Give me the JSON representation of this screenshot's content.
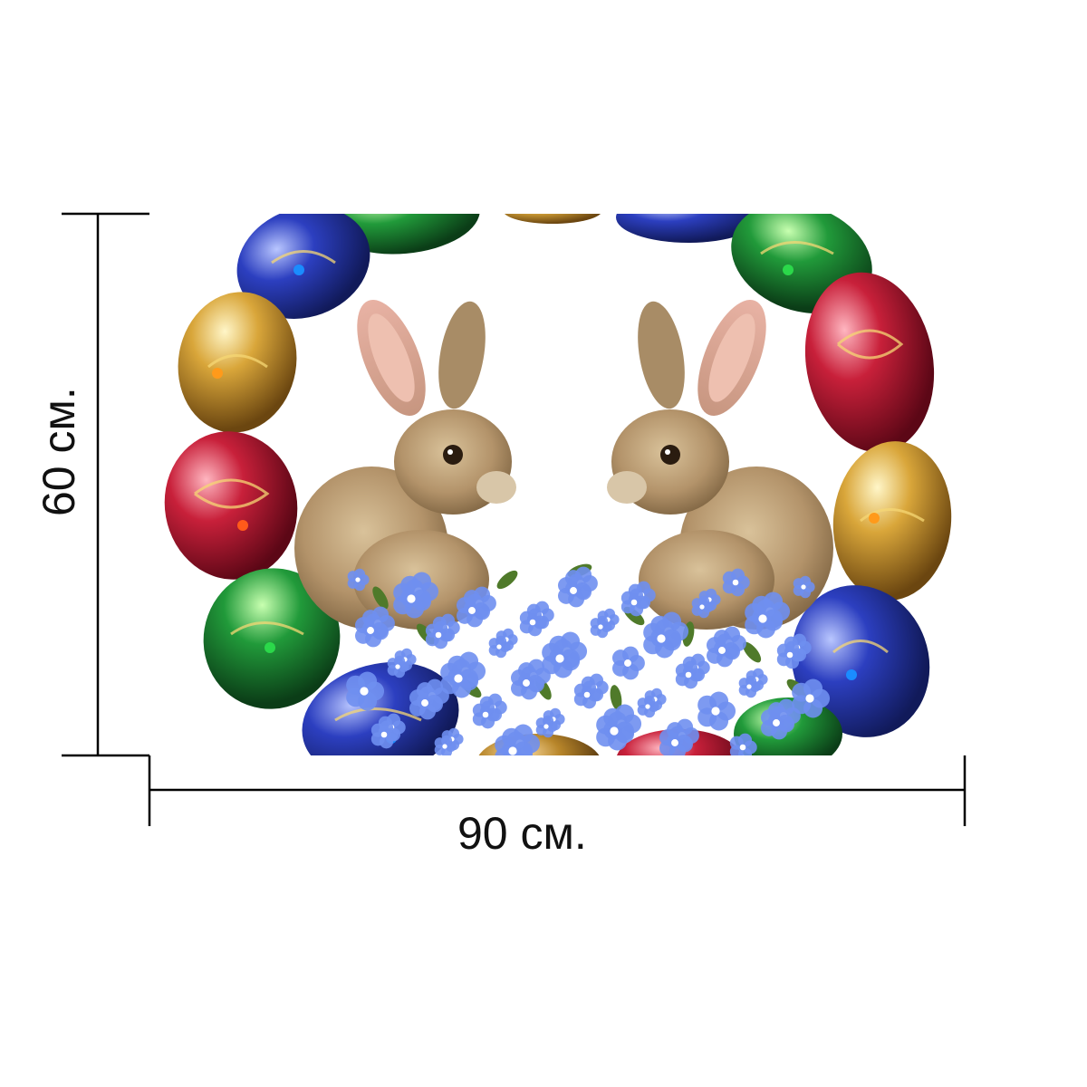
{
  "dimensions": {
    "height_label": "60 см.",
    "width_label": "90 см."
  },
  "illustration": {
    "subject": "easter-wreath-with-two-rabbits-and-blue-flowers",
    "egg_colors": [
      "#c9a13a",
      "#2a3fb0",
      "#1f8a34",
      "#c0203a",
      "#b8862a"
    ],
    "rabbit_color": "#b89a6e",
    "flower_color": "#6f8ff0",
    "line_color": "#000000"
  }
}
